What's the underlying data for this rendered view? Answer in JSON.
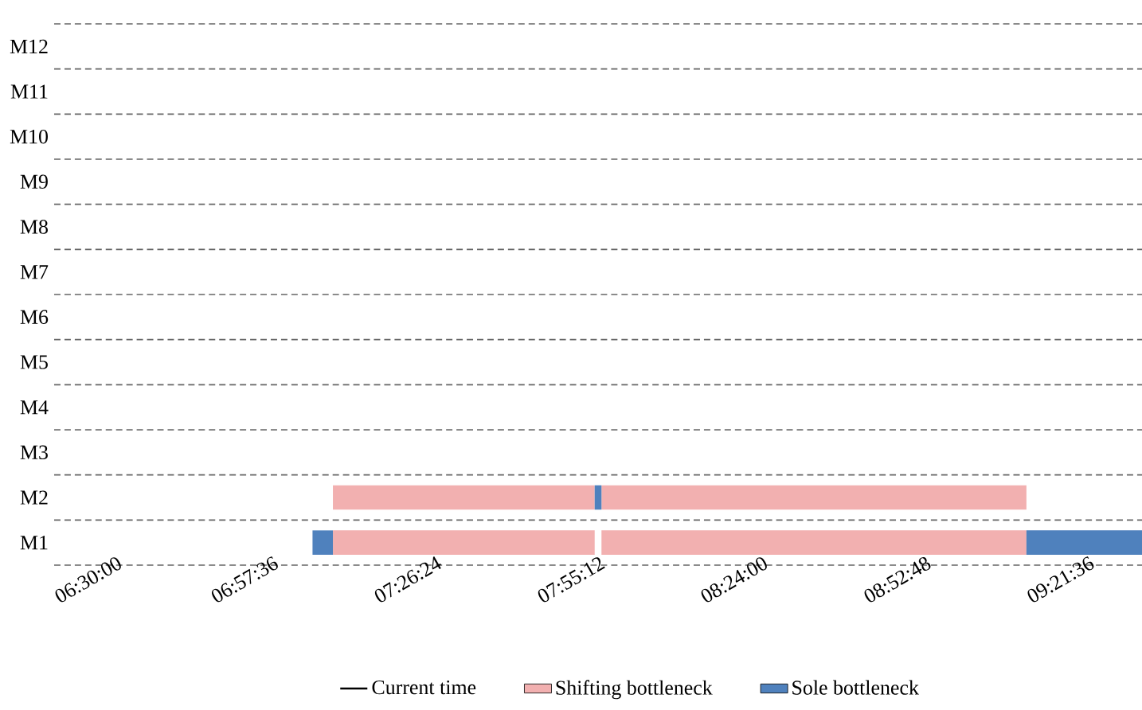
{
  "chart_data": {
    "type": "bar",
    "orientation": "horizontal",
    "categories": [
      "M12",
      "M11",
      "M10",
      "M9",
      "M8",
      "M7",
      "M6",
      "M5",
      "M4",
      "M3",
      "M2",
      "M1"
    ],
    "series": [
      {
        "name": "Current time",
        "type": "line",
        "color": "#000000",
        "values": [
          null,
          null,
          null,
          null,
          null,
          null,
          null,
          null,
          null,
          null,
          null,
          null
        ]
      },
      {
        "name": "Shifting bottleneck",
        "color": "#f2b0b0",
        "base": [
          null,
          null,
          null,
          null,
          null,
          null,
          null,
          null,
          null,
          null,
          7.22,
          7.22
        ],
        "values": [
          null,
          null,
          null,
          null,
          null,
          null,
          null,
          null,
          null,
          null,
          0.77,
          0.77
        ]
      },
      {
        "color": "#f2b0b0",
        "base": [
          null,
          null,
          null,
          null,
          null,
          null,
          null,
          null,
          null,
          null,
          8.01,
          8.01
        ],
        "values": [
          null,
          null,
          null,
          null,
          null,
          null,
          null,
          null,
          null,
          null,
          1.25,
          1.25
        ]
      },
      {
        "name": "Sole bottleneck",
        "color": "#4f81bd",
        "base": [
          null,
          null,
          null,
          null,
          null,
          null,
          null,
          null,
          null,
          null,
          7.99,
          7.16
        ],
        "values": [
          null,
          null,
          null,
          null,
          null,
          null,
          null,
          null,
          null,
          null,
          0.02,
          0.06
        ]
      },
      {
        "color": "#4f81bd",
        "base": [
          null,
          null,
          null,
          null,
          null,
          null,
          null,
          null,
          null,
          null,
          null,
          9.26
        ],
        "values": [
          null,
          null,
          null,
          null,
          null,
          null,
          null,
          null,
          null,
          null,
          null,
          0.34
        ]
      }
    ],
    "xlim": [
      6.4,
      9.6
    ],
    "xticks": [
      {
        "value": 6.5,
        "label": "06:30:00"
      },
      {
        "value": 6.96,
        "label": "06:57:36"
      },
      {
        "value": 7.44,
        "label": "07:26:24"
      },
      {
        "value": 7.92,
        "label": "07:55:12"
      },
      {
        "value": 8.4,
        "label": "08:24:00"
      },
      {
        "value": 8.88,
        "label": "08:52:48"
      },
      {
        "value": 9.36,
        "label": "09:21:36"
      }
    ],
    "grid": "y",
    "legend": "bottom"
  }
}
